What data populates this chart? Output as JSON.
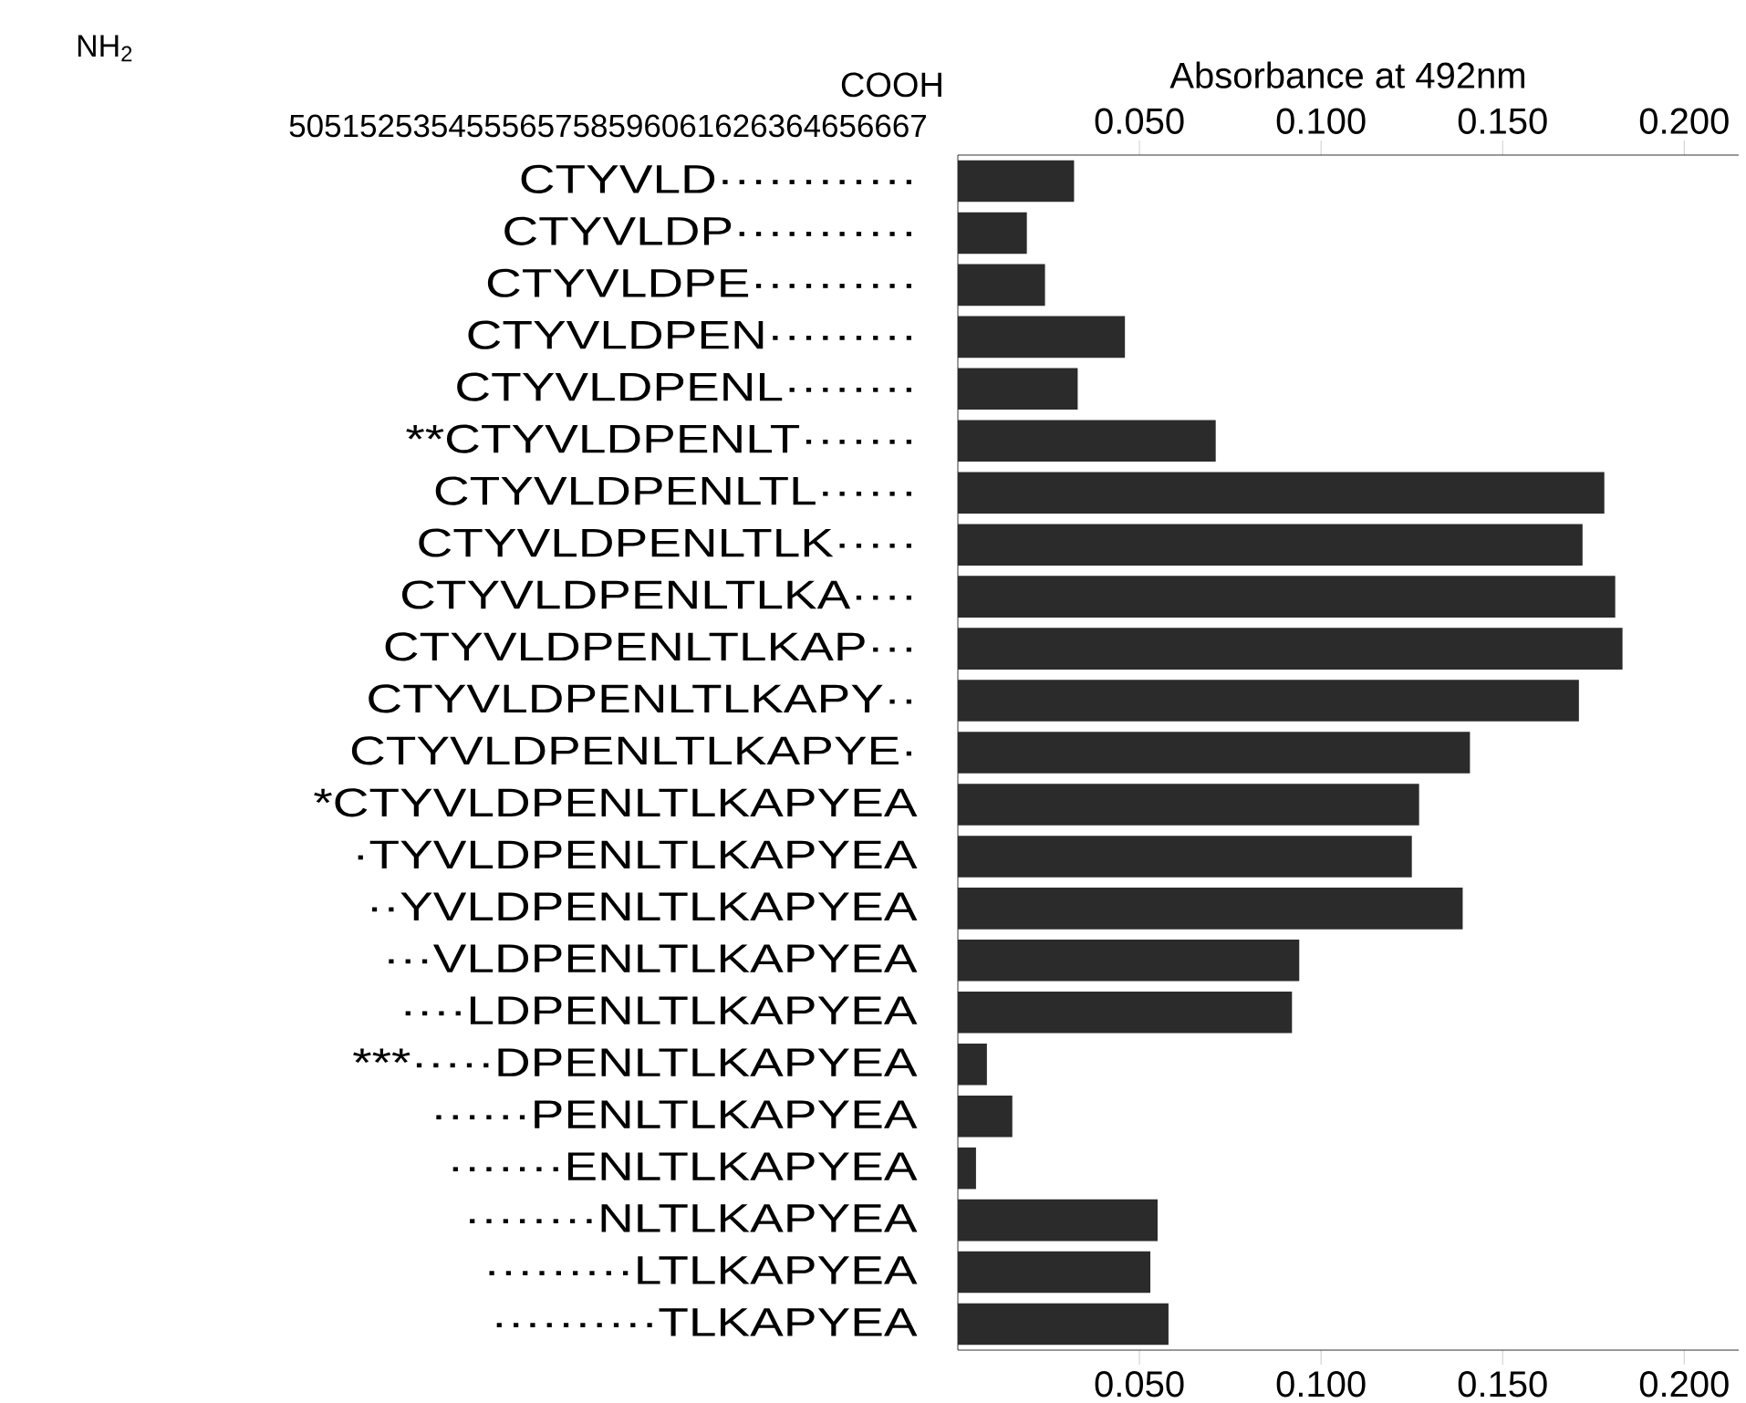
{
  "chart_data": {
    "type": "bar",
    "orientation": "horizontal",
    "x2label": "Absorbance   at  492nm",
    "annotations": [
      "NH$_{2}$",
      "COOH",
      "505152535455565758596061626364656667"
    ],
    "categories": [
      "CTYVLD············",
      "CTYVLDP···········",
      "CTYVLDPE··········",
      "CTYVLDPEN·········",
      "CTYVLDPENL········",
      "**CTYVLDPENLT·······",
      "CTYVLDPENLTL······",
      "CTYVLDPENLTLK·····",
      "CTYVLDPENLTLKA····",
      "CTYVLDPENLTLKAP···",
      "CTYVLDPENLTLKAPY··",
      "CTYVLDPENLTLKAPYE·",
      "*CTYVLDPENLTLKAPYEA",
      "·TYVLDPENLTLKAPYEA",
      "··YVLDPENLTLKAPYEA",
      "···VLDPENLTLKAPYEA",
      "····LDPENLTLKAPYEA",
      "***·····DPENLTLKAPYEA",
      "······PENLTLKAPYEA",
      "·······ENLTLKAPYEA",
      "········NLTLKAPYEA",
      "·········LTLKAPYEA",
      "··········TLKAPYEA"
    ],
    "values": [
      0.032,
      0.019,
      0.024,
      0.046,
      0.033,
      0.071,
      0.178,
      0.172,
      0.181,
      0.183,
      0.171,
      0.141,
      0.127,
      0.125,
      0.139,
      0.094,
      0.092,
      0.008,
      0.015,
      0.005,
      0.055,
      0.053,
      0.058
    ],
    "color": "#2b2b2b",
    "xlim": [
      0,
      0.215
    ],
    "xticks": [
      {
        "value": 0.05,
        "label": "0.050"
      },
      {
        "value": 0.1,
        "label": "0.100"
      },
      {
        "value": 0.15,
        "label": "0.150"
      },
      {
        "value": 0.2,
        "label": "0.200"
      }
    ],
    "x2lim": [
      0,
      0.215
    ],
    "x2ticks": [
      {
        "value": 0.05,
        "label": "0.050"
      },
      {
        "value": 0.1,
        "label": "0.100"
      },
      {
        "value": 0.15,
        "label": "0.150"
      },
      {
        "value": 0.2,
        "label": "0.200"
      }
    ]
  }
}
